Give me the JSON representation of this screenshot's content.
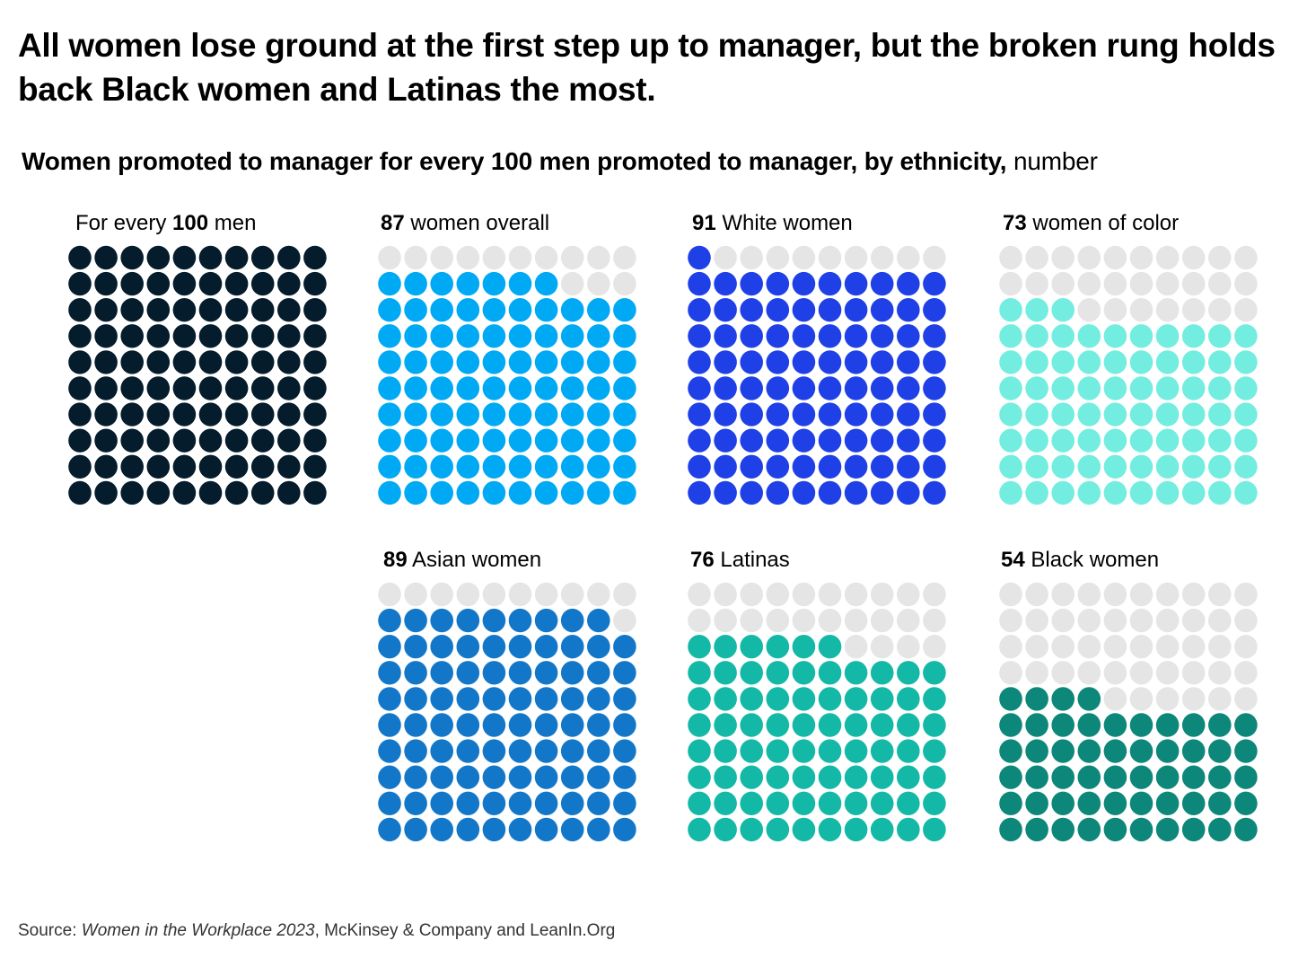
{
  "title": "All women lose ground at the first step up to manager, but the broken rung holds back Black women and Latinas the most.",
  "subtitle": {
    "bold": "Women promoted to manager for every 100 men promoted to manager, by ethnicity,",
    "unit": "number"
  },
  "source": {
    "prefix": "Source: ",
    "publication": "Women in the Workplace 2023",
    "suffix": ", McKinsey & Company and LeanIn.Org"
  },
  "empty_color": "#e5e5e5",
  "chart_data": {
    "type": "waffle",
    "grid": [
      10,
      10
    ],
    "series": [
      {
        "name": "men",
        "pre": "For every ",
        "value": 100,
        "text": " men",
        "color": "#051c2c"
      },
      {
        "name": "women overall",
        "value": 87,
        "text": " women overall",
        "color": "#00a9f4"
      },
      {
        "name": "White women",
        "value": 91,
        "text": " White women",
        "color": "#1f40e6"
      },
      {
        "name": "women of color",
        "value": 73,
        "text": " women of color",
        "color": "#74ede1"
      },
      {
        "name": "Asian women",
        "value": 89,
        "text": " Asian women",
        "color": "#1377c9"
      },
      {
        "name": "Latinas",
        "value": 76,
        "text": " Latinas",
        "color": "#13b8a7"
      },
      {
        "name": "Black women",
        "value": 54,
        "text": " Black women",
        "color": "#0c877a"
      }
    ]
  }
}
